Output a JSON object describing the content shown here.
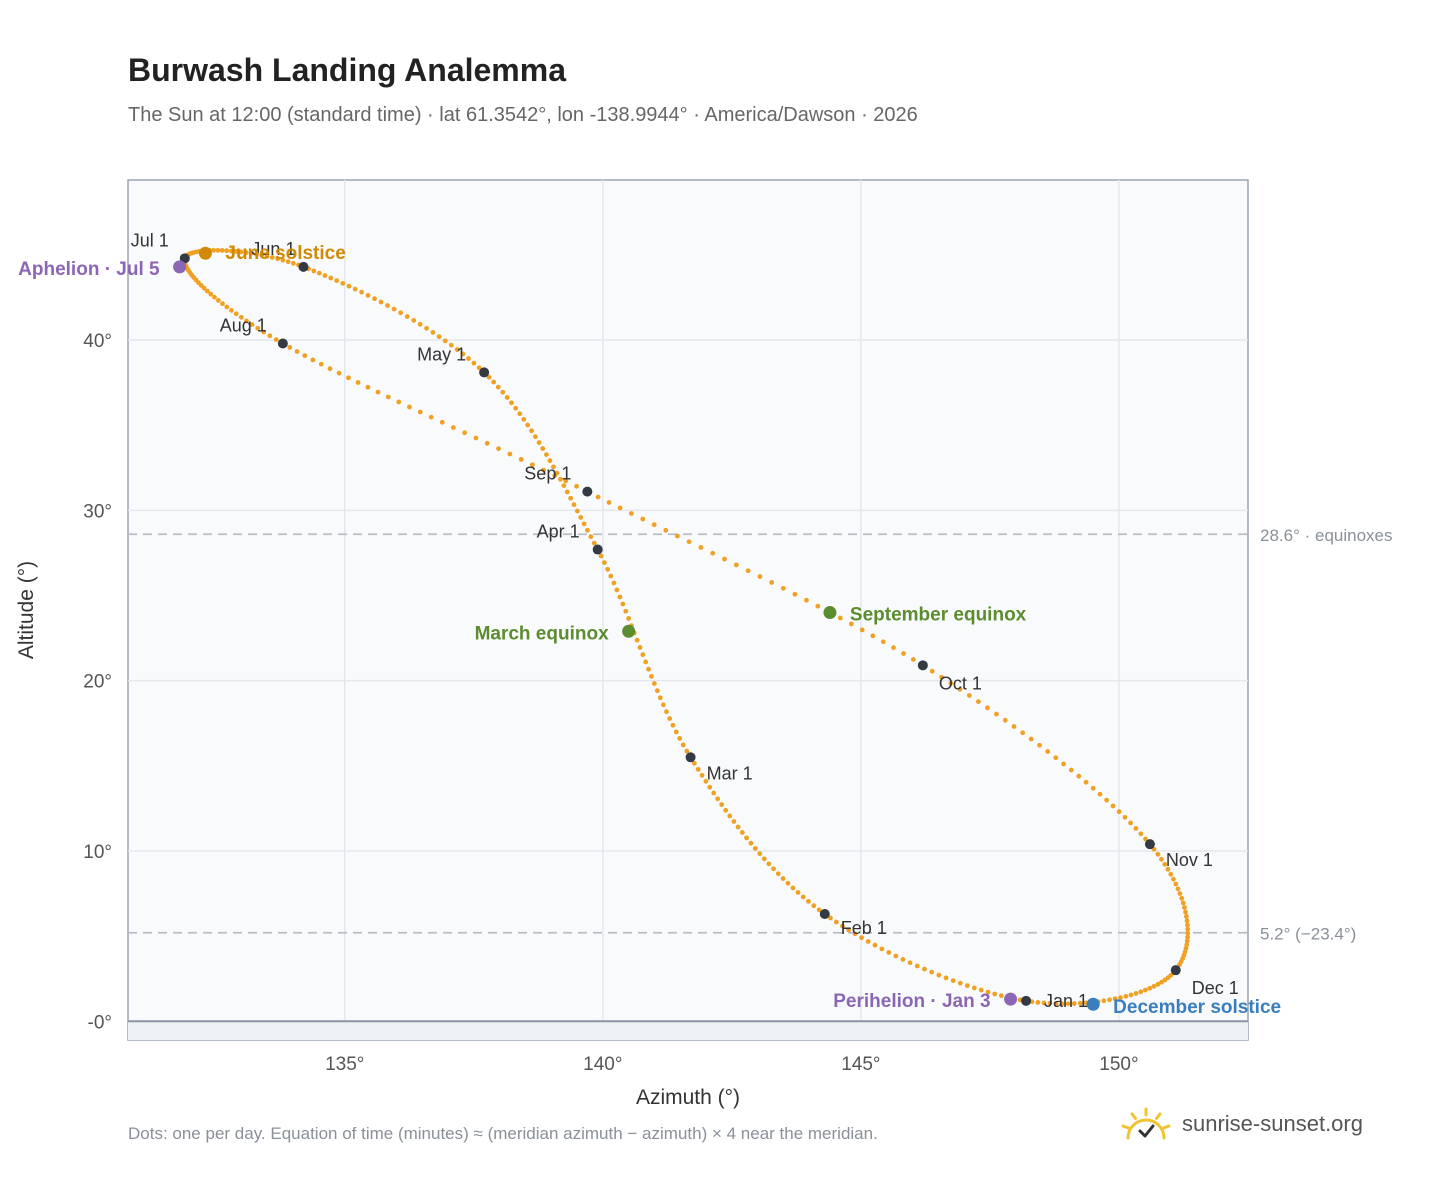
{
  "header": {
    "title": "Burwash Landing Analemma",
    "subtitle": "The Sun at 12:00 (standard time) · lat 61.3542°, lon -138.9944° · America/Dawson · 2026"
  },
  "footer": {
    "note": "Dots: one per day. Equation of time (minutes) ≈ (meridian azimuth − azimuth) × 4 near the meridian.",
    "brand": "sunrise-sunset.org"
  },
  "colors": {
    "curve": "#f0a124",
    "month_marker": "#333a44",
    "solstice_june": "#d18a06",
    "solstice_december": "#3a7ebf",
    "equinox": "#5b8c2e",
    "apsis": "#8b66b5",
    "refline": "#b9bec6",
    "grid": "#e4e8ee",
    "plot_bg": "#f8fafc",
    "axis": "#9aa3af"
  },
  "chart_data": {
    "type": "scatter",
    "xlabel": "Azimuth (°)",
    "ylabel": "Altitude (°)",
    "xlim": [
      130.8,
      152.5
    ],
    "ylim": [
      -1.1,
      49.4
    ],
    "x_ticks": [
      135,
      140,
      145,
      150
    ],
    "x_tick_labels": [
      "135°",
      "140°",
      "145°",
      "150°"
    ],
    "y_ticks": [
      0,
      10,
      20,
      30,
      40
    ],
    "y_tick_labels": [
      "-0°",
      "10°",
      "20°",
      "30°",
      "40°"
    ],
    "horizon_altitude": 0,
    "grid": true,
    "month_markers": [
      {
        "label": "Jan 1",
        "azimuth": 148.2,
        "altitude": 1.2
      },
      {
        "label": "Feb 1",
        "azimuth": 144.3,
        "altitude": 6.3
      },
      {
        "label": "Mar 1",
        "azimuth": 141.7,
        "altitude": 15.5
      },
      {
        "label": "Apr 1",
        "azimuth": 139.9,
        "altitude": 27.7
      },
      {
        "label": "May 1",
        "azimuth": 137.7,
        "altitude": 38.1
      },
      {
        "label": "Jun 1",
        "azimuth": 134.2,
        "altitude": 44.3
      },
      {
        "label": "Jul 1",
        "azimuth": 131.9,
        "altitude": 44.8
      },
      {
        "label": "Aug 1",
        "azimuth": 133.8,
        "altitude": 39.8
      },
      {
        "label": "Sep 1",
        "azimuth": 139.7,
        "altitude": 31.1
      },
      {
        "label": "Oct 1",
        "azimuth": 146.2,
        "altitude": 20.9
      },
      {
        "label": "Nov 1",
        "azimuth": 150.6,
        "altitude": 10.4
      },
      {
        "label": "Dec 1",
        "azimuth": 151.1,
        "altitude": 3.0
      }
    ],
    "events": [
      {
        "label": "June solstice",
        "azimuth": 132.3,
        "altitude": 45.1
      },
      {
        "label": "Aphelion · Jul 5",
        "azimuth": 131.8,
        "altitude": 44.3
      },
      {
        "label": "March equinox",
        "azimuth": 140.5,
        "altitude": 22.9
      },
      {
        "label": "September equinox",
        "azimuth": 144.4,
        "altitude": 24.0
      },
      {
        "label": "Perihelion · Jan 3",
        "azimuth": 147.9,
        "altitude": 1.3
      },
      {
        "label": "December solstice",
        "azimuth": 149.5,
        "altitude": 1.0
      }
    ],
    "reference_lines": [
      {
        "label": "28.6° · equinoxes",
        "altitude": 28.6
      },
      {
        "label": "5.2° (−23.4°)",
        "altitude": 5.2
      }
    ]
  }
}
